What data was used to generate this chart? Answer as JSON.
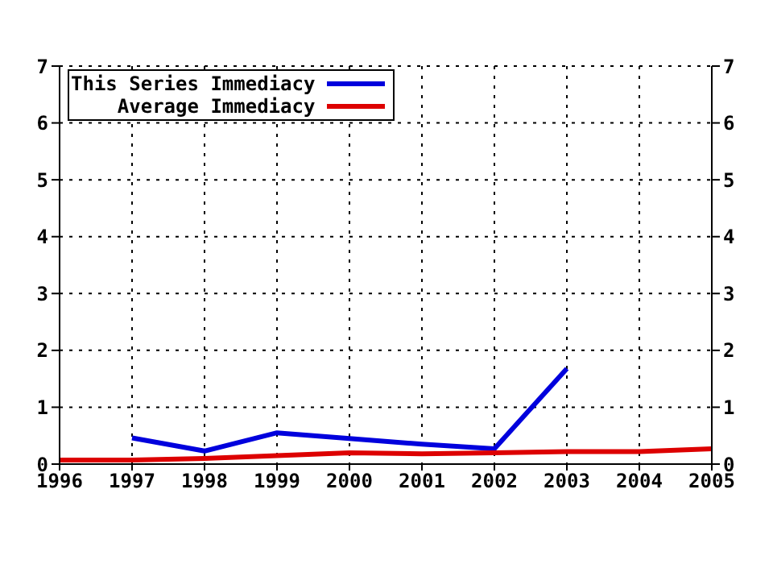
{
  "chart_data": {
    "type": "line",
    "x": [
      1996,
      1997,
      1998,
      1999,
      2000,
      2001,
      2002,
      2003,
      2004,
      2005
    ],
    "series": [
      {
        "name": "This Series Immediacy",
        "color": "#0000dd",
        "values": [
          null,
          0.46,
          0.23,
          0.55,
          0.45,
          0.35,
          0.27,
          1.68,
          null,
          null
        ]
      },
      {
        "name": "Average Immediacy",
        "color": "#dd0000",
        "values": [
          0.07,
          0.07,
          0.1,
          0.15,
          0.2,
          0.18,
          0.2,
          0.22,
          0.22,
          0.27
        ]
      }
    ],
    "xlim": [
      1996,
      2005
    ],
    "xticks": [
      1996,
      1997,
      1998,
      1999,
      2000,
      2001,
      2002,
      2003,
      2004,
      2005
    ],
    "ylim": [
      0,
      7
    ],
    "yticks": [
      0,
      1,
      2,
      3,
      4,
      5,
      6,
      7
    ],
    "y2lim": [
      0,
      7
    ],
    "y2ticks": [
      0,
      1,
      2,
      3,
      4,
      5,
      6,
      7
    ],
    "grid": true,
    "legend": "top left",
    "marker": "none",
    "line_style": "solid"
  }
}
